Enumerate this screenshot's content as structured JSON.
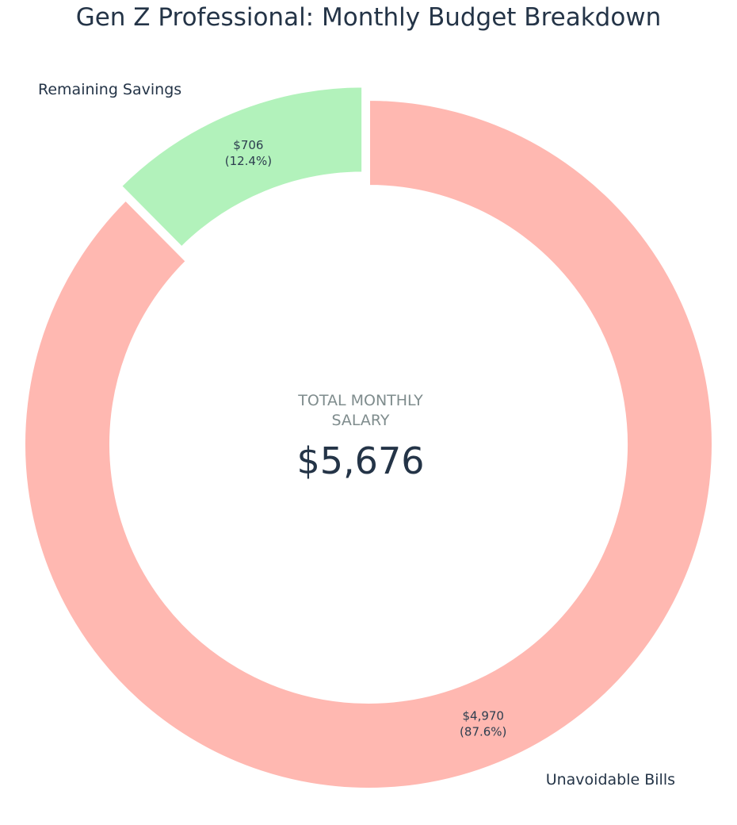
{
  "chart_data": {
    "type": "pie",
    "title": "Gen Z Professional: Monthly Budget Breakdown",
    "categories": [
      "Remaining Savings",
      "Unavoidable Bills"
    ],
    "values": [
      706,
      4970
    ],
    "value_labels": [
      "$706",
      "$4,970"
    ],
    "percent_labels": [
      "(12.4%)",
      "(87.6%)"
    ],
    "colors": [
      "#b2f2bb",
      "#ffb8b1"
    ],
    "center": {
      "caption_line1": "TOTAL MONTHLY",
      "caption_line2": "SALARY",
      "value": "$5,676"
    }
  }
}
